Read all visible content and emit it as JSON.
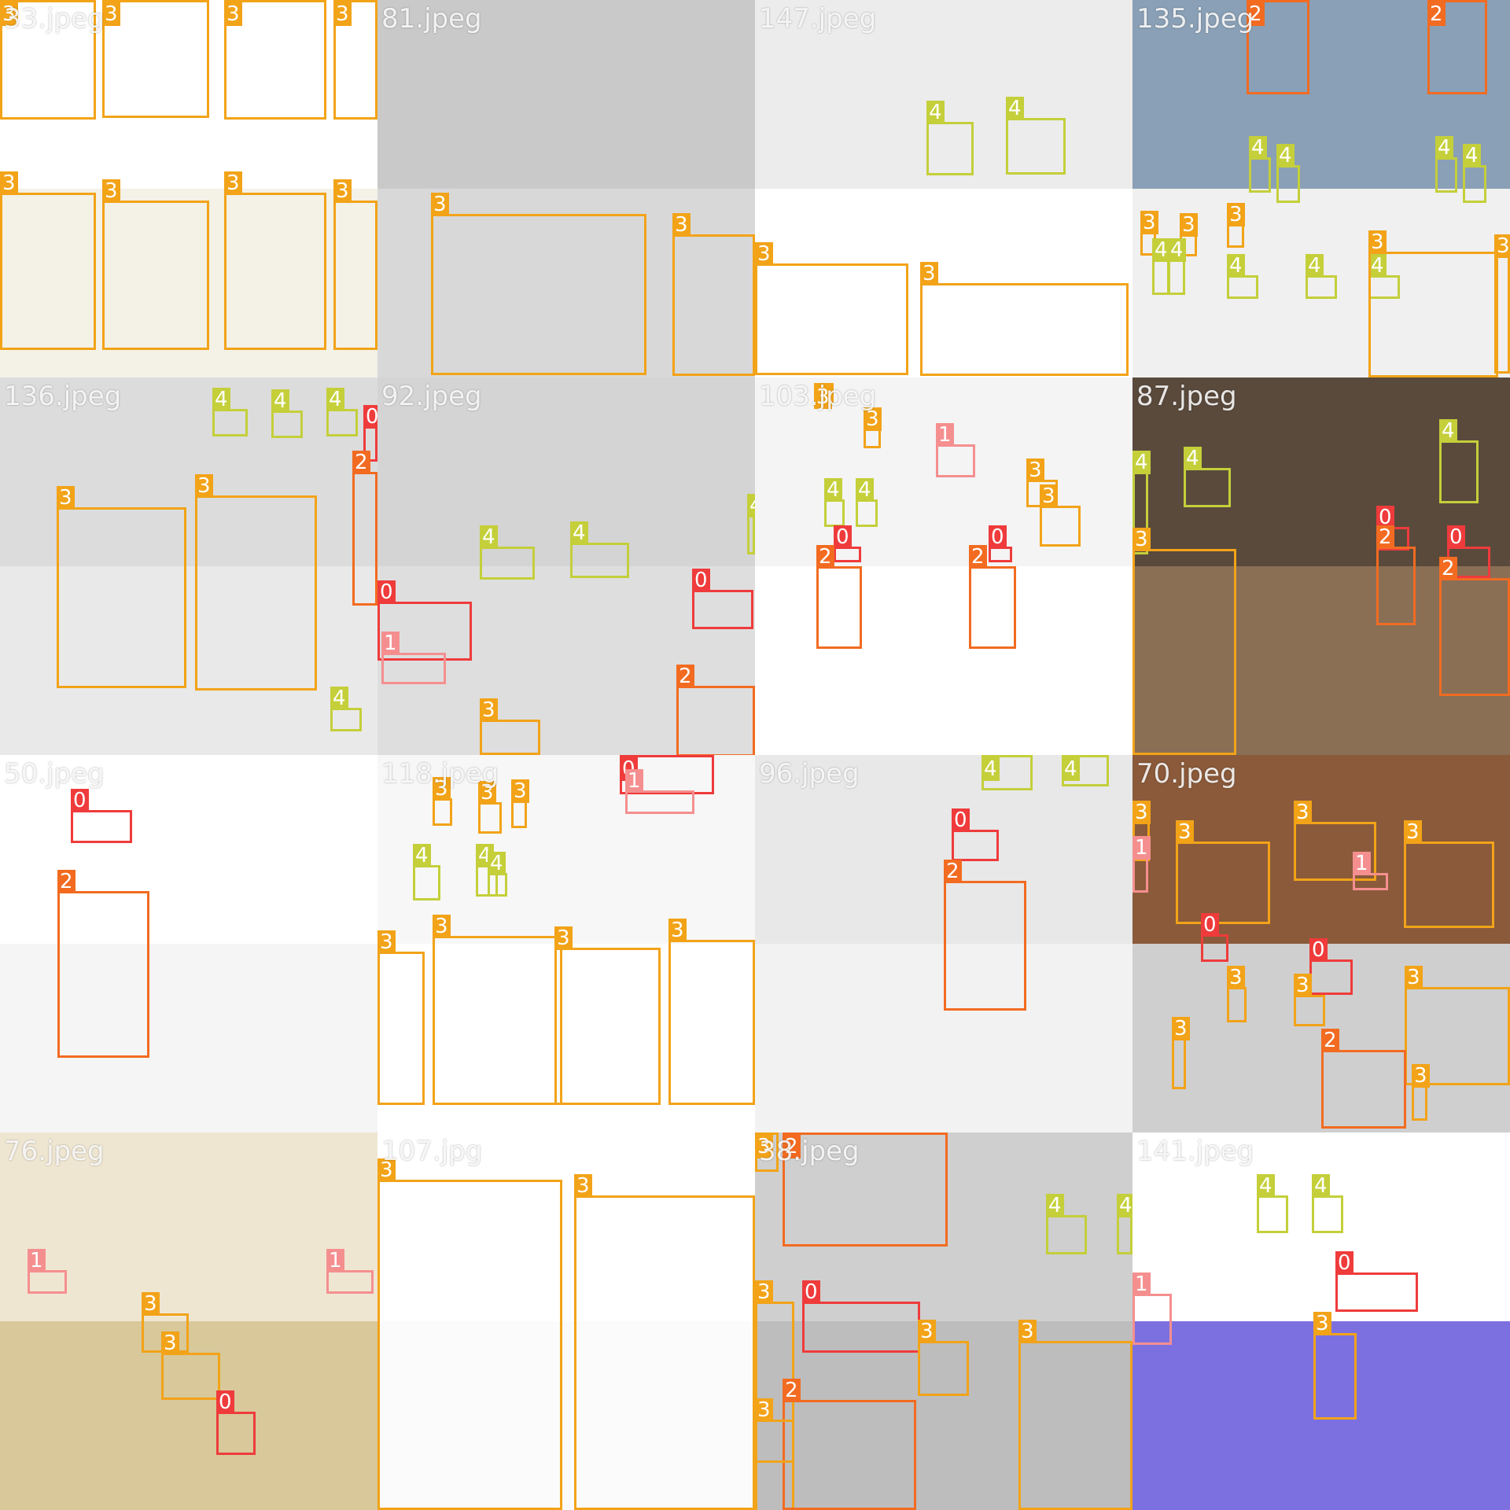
{
  "grid": {
    "columns": 4,
    "rows": 4
  },
  "class_colors": {
    "0": "#ef3b3b",
    "1": "#f58f8f",
    "2": "#f26b21",
    "3": "#f2a318",
    "4": "#c4cf3a"
  },
  "tiles": [
    {
      "file": "33.jpeg",
      "bg": [
        "#ffffff",
        "#f4f1e6"
      ],
      "boxes": [
        {
          "label": "3"
        },
        {
          "label": "3"
        },
        {
          "label": "3"
        },
        {
          "label": "3"
        },
        {
          "label": "3"
        },
        {
          "label": "3"
        },
        {
          "label": "3"
        },
        {
          "label": "3"
        }
      ]
    },
    {
      "file": "81.jpeg",
      "bg": [
        "#c9c9c9",
        "#d8d8d8"
      ],
      "boxes": [
        {
          "label": "3"
        },
        {
          "label": "3"
        }
      ]
    },
    {
      "file": "147.jpeg",
      "bg": [
        "#ececec",
        "#ffffff"
      ],
      "boxes": [
        {
          "label": "4"
        },
        {
          "label": "4"
        },
        {
          "label": "3"
        },
        {
          "label": "3"
        }
      ]
    },
    {
      "file": "135.jpeg",
      "bg": [
        "#8aa0b6",
        "#f0f0f0"
      ],
      "boxes": [
        {
          "label": "2"
        },
        {
          "label": "2"
        },
        {
          "label": "4"
        },
        {
          "label": "4"
        },
        {
          "label": "4"
        },
        {
          "label": "4"
        },
        {
          "label": "3"
        },
        {
          "label": "3"
        },
        {
          "label": "3"
        },
        {
          "label": "4"
        },
        {
          "label": "4"
        },
        {
          "label": "4"
        },
        {
          "label": "4"
        },
        {
          "label": "4"
        },
        {
          "label": "4"
        },
        {
          "label": "3"
        },
        {
          "label": "3"
        }
      ]
    },
    {
      "file": "136.jpeg",
      "bg": [
        "#dcdcdc",
        "#e9e9e9"
      ],
      "boxes": [
        {
          "label": "4"
        },
        {
          "label": "4"
        },
        {
          "label": "4"
        },
        {
          "label": "0"
        },
        {
          "label": "3"
        },
        {
          "label": "3"
        },
        {
          "label": "2"
        },
        {
          "label": "4"
        }
      ]
    },
    {
      "file": "92.jpeg",
      "bg": [
        "#d4d4d4",
        "#dedede"
      ],
      "boxes": [
        {
          "label": "4"
        },
        {
          "label": "4"
        },
        {
          "label": "4"
        },
        {
          "label": "0"
        },
        {
          "label": "0"
        },
        {
          "label": "1"
        },
        {
          "label": "2"
        },
        {
          "label": "3"
        }
      ]
    },
    {
      "file": "103.jpeg",
      "bg": [
        "#f4f4f4",
        "#ffffff"
      ],
      "boxes": [
        {
          "label": "3"
        },
        {
          "label": "3"
        },
        {
          "label": "1"
        },
        {
          "label": "3"
        },
        {
          "label": "3"
        },
        {
          "label": "4"
        },
        {
          "label": "4"
        },
        {
          "label": "0"
        },
        {
          "label": "0"
        },
        {
          "label": "2"
        },
        {
          "label": "2"
        }
      ]
    },
    {
      "file": "87.jpeg",
      "bg": [
        "#5a4a3c",
        "#8a6f55"
      ],
      "boxes": [
        {
          "label": "4"
        },
        {
          "label": "4"
        },
        {
          "label": "4"
        },
        {
          "label": "3"
        },
        {
          "label": "0"
        },
        {
          "label": "0"
        },
        {
          "label": "2"
        },
        {
          "label": "2"
        }
      ]
    },
    {
      "file": "50.jpeg",
      "bg": [
        "#ffffff",
        "#f5f5f5"
      ],
      "boxes": [
        {
          "label": "0"
        },
        {
          "label": "2"
        }
      ]
    },
    {
      "file": "118.jpeg",
      "bg": [
        "#f7f7f7",
        "#ffffff"
      ],
      "boxes": [
        {
          "label": "0"
        },
        {
          "label": "1"
        },
        {
          "label": "3"
        },
        {
          "label": "3"
        },
        {
          "label": "3"
        },
        {
          "label": "4"
        },
        {
          "label": "4"
        },
        {
          "label": "4"
        },
        {
          "label": "4"
        },
        {
          "label": "3"
        },
        {
          "label": "3"
        },
        {
          "label": "3"
        },
        {
          "label": "3"
        }
      ]
    },
    {
      "file": "96.jpeg",
      "bg": [
        "#e8e8e8",
        "#f2f2f2"
      ],
      "boxes": [
        {
          "label": "4"
        },
        {
          "label": "4"
        },
        {
          "label": "0"
        },
        {
          "label": "2"
        }
      ]
    },
    {
      "file": "70.jpeg",
      "bg": [
        "#8a5a3a",
        "#cfcfcf"
      ],
      "boxes": [
        {
          "label": "3"
        },
        {
          "label": "3"
        },
        {
          "label": "1"
        },
        {
          "label": "3"
        },
        {
          "label": "3"
        },
        {
          "label": "1"
        },
        {
          "label": "0"
        },
        {
          "label": "3"
        },
        {
          "label": "3"
        },
        {
          "label": "0"
        },
        {
          "label": "3"
        },
        {
          "label": "3"
        },
        {
          "label": "2"
        },
        {
          "label": "3"
        }
      ]
    },
    {
      "file": "76.jpeg",
      "bg": [
        "#efe6d2",
        "#d8c89a"
      ],
      "boxes": [
        {
          "label": "1"
        },
        {
          "label": "1"
        },
        {
          "label": "3"
        },
        {
          "label": "3"
        },
        {
          "label": "0"
        }
      ]
    },
    {
      "file": "107.jpg",
      "bg": [
        "#ffffff",
        "#fbfbfb"
      ],
      "boxes": [
        {
          "label": "3"
        },
        {
          "label": "3"
        }
      ]
    },
    {
      "file": "38.jpeg",
      "bg": [
        "#cfcfcf",
        "#bdbdbd"
      ],
      "boxes": [
        {
          "label": "3"
        },
        {
          "label": "2"
        },
        {
          "label": "4"
        },
        {
          "label": "4"
        },
        {
          "label": "3"
        },
        {
          "label": "0"
        },
        {
          "label": "3"
        },
        {
          "label": "3"
        },
        {
          "label": "2"
        },
        {
          "label": "3"
        }
      ]
    },
    {
      "file": "141.jpeg",
      "bg": [
        "#ffffff",
        "#7c70e0"
      ],
      "boxes": [
        {
          "label": "4"
        },
        {
          "label": "4"
        },
        {
          "label": "0"
        },
        {
          "label": "1"
        },
        {
          "label": "3"
        }
      ]
    }
  ]
}
